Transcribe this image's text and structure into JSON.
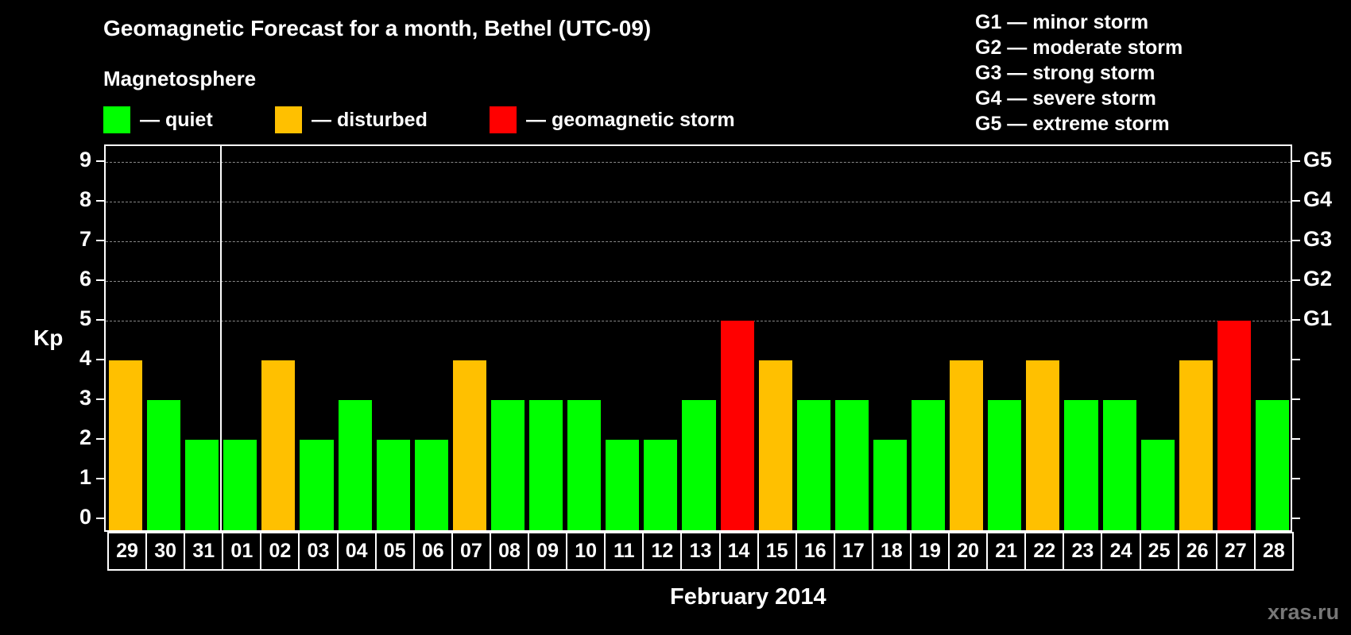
{
  "title": "Geomagnetic Forecast for a month, Bethel (UTC-09)",
  "subtitle": "Magnetosphere",
  "legend": [
    {
      "label": "— quiet",
      "color": "#00ff00"
    },
    {
      "label": "— disturbed",
      "color": "#ffc000"
    },
    {
      "label": "— geomagnetic storm",
      "color": "#ff0000"
    }
  ],
  "g_legend": [
    "G1 — minor storm",
    "G2 — moderate storm",
    "G3 — strong storm",
    "G4 — severe storm",
    "G5 — extreme storm"
  ],
  "y_axis_label": "Kp",
  "x_axis_label": "February 2014",
  "watermark": "xras.ru",
  "chart_data": {
    "type": "bar",
    "title": "Geomagnetic Forecast for a month, Bethel (UTC-09)",
    "xlabel": "February 2014",
    "ylabel": "Kp",
    "ylim": [
      0,
      9
    ],
    "yticks": [
      "0",
      "1",
      "2",
      "3",
      "4",
      "5",
      "6",
      "7",
      "8",
      "9"
    ],
    "right_ticks": [
      {
        "value": 5,
        "label": "G1"
      },
      {
        "value": 6,
        "label": "G2"
      },
      {
        "value": 7,
        "label": "G3"
      },
      {
        "value": 8,
        "label": "G4"
      },
      {
        "value": 9,
        "label": "G5"
      }
    ],
    "grid": "dashed horizontal at Kp 5-9",
    "categories": [
      "29",
      "30",
      "31",
      "01",
      "02",
      "03",
      "04",
      "05",
      "06",
      "07",
      "08",
      "09",
      "10",
      "11",
      "12",
      "13",
      "14",
      "15",
      "16",
      "17",
      "18",
      "19",
      "20",
      "21",
      "22",
      "23",
      "24",
      "25",
      "26",
      "27",
      "28"
    ],
    "values": [
      4,
      3,
      2,
      2,
      4,
      2,
      3,
      2,
      2,
      4,
      3,
      3,
      3,
      2,
      2,
      3,
      5,
      4,
      3,
      3,
      2,
      3,
      4,
      3,
      4,
      3,
      3,
      2,
      4,
      5,
      3
    ],
    "status": [
      "disturbed",
      "quiet",
      "quiet",
      "quiet",
      "disturbed",
      "quiet",
      "quiet",
      "quiet",
      "quiet",
      "disturbed",
      "quiet",
      "quiet",
      "quiet",
      "quiet",
      "quiet",
      "quiet",
      "storm",
      "disturbed",
      "quiet",
      "quiet",
      "quiet",
      "quiet",
      "disturbed",
      "quiet",
      "disturbed",
      "quiet",
      "quiet",
      "quiet",
      "disturbed",
      "storm",
      "quiet"
    ],
    "colors": {
      "quiet": "#00ff00",
      "disturbed": "#ffc000",
      "storm": "#ff0000"
    },
    "month_separator_after_index": 2
  }
}
